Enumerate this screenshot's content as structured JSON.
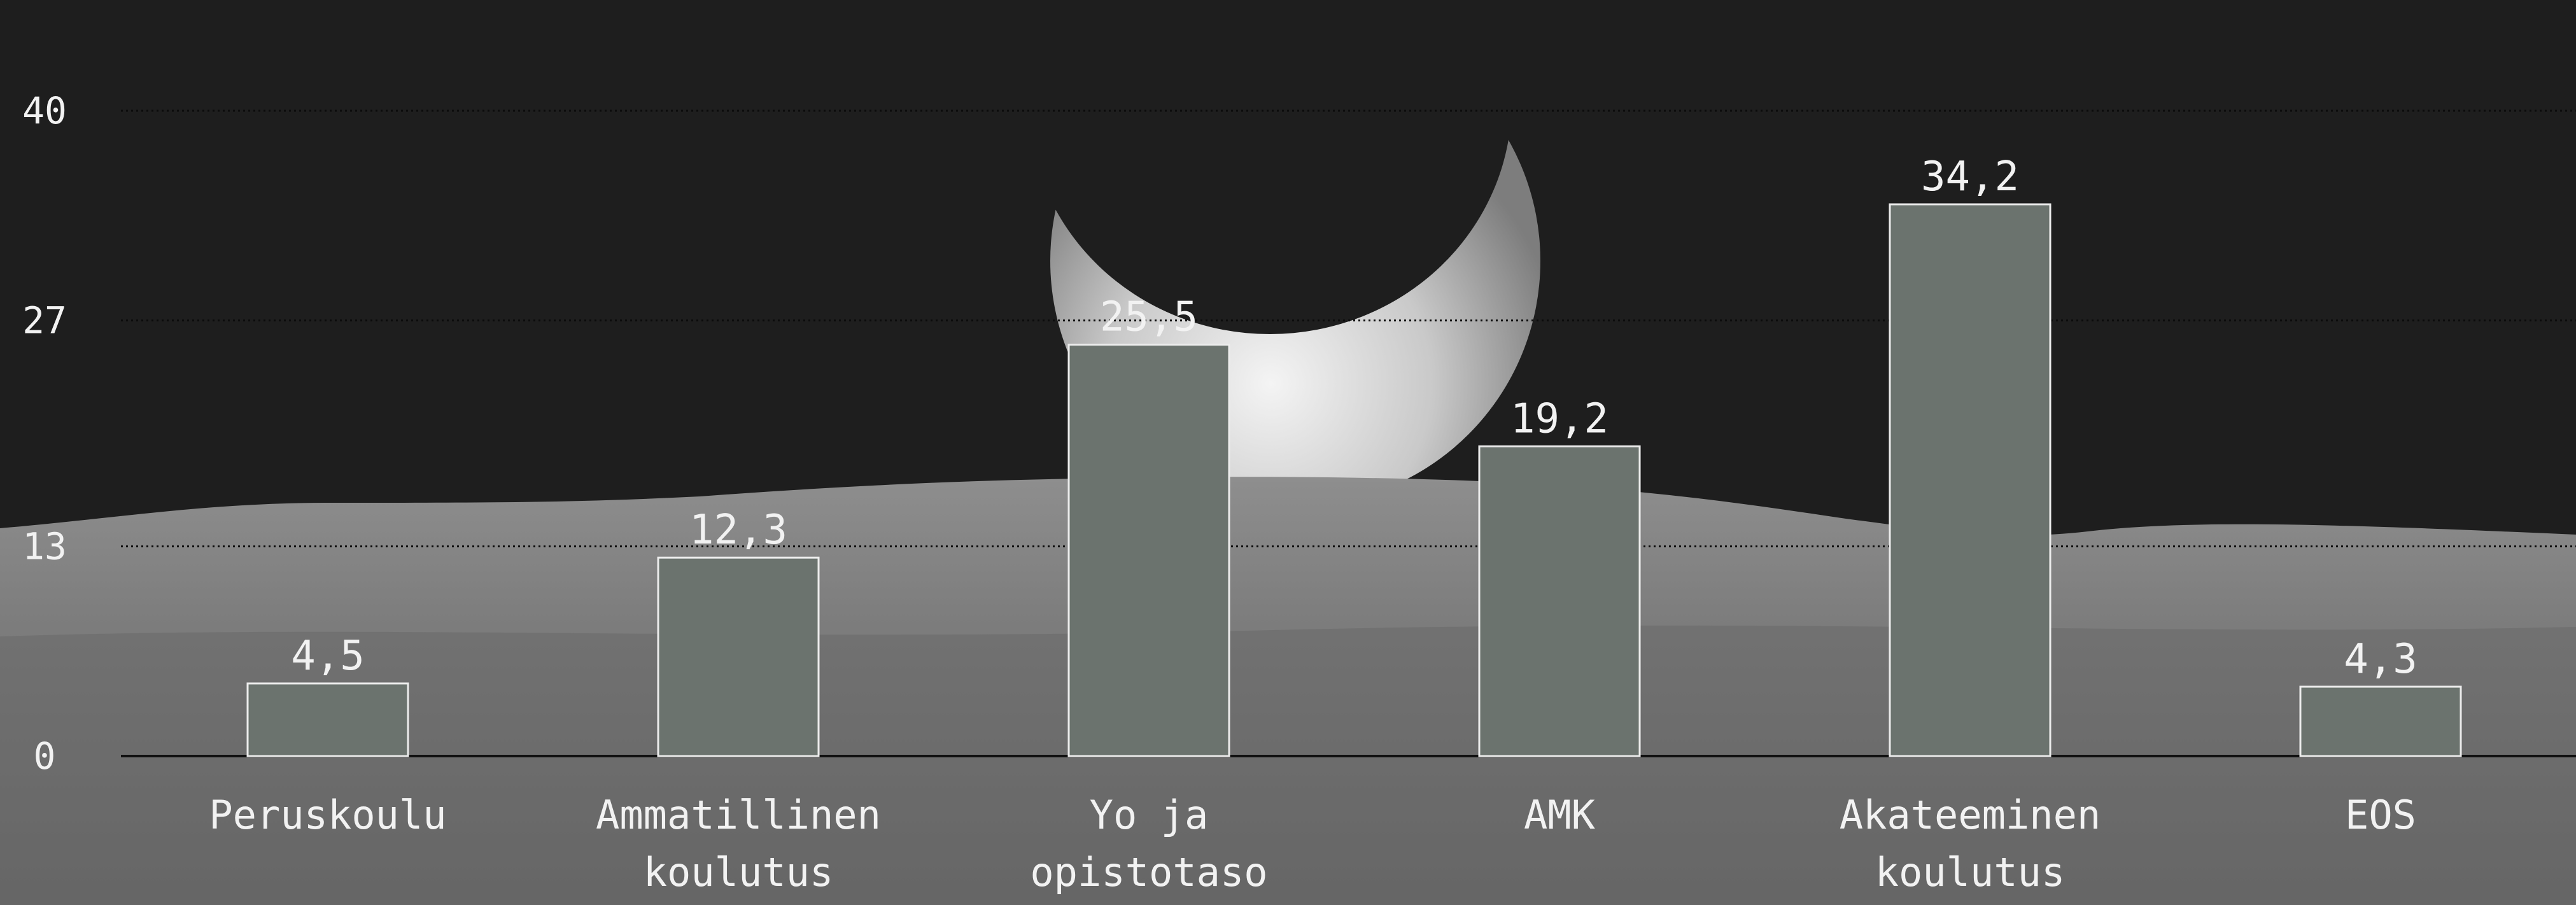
{
  "chart_data": {
    "type": "bar",
    "categories": [
      [
        "Peruskoulu"
      ],
      [
        "Ammatillinen",
        "koulutus"
      ],
      [
        "Yo ja",
        "opistotaso"
      ],
      [
        "AMK"
      ],
      [
        "Akateeminen",
        "koulutus"
      ],
      [
        "EOS"
      ]
    ],
    "values": [
      4.5,
      12.3,
      25.5,
      19.2,
      34.2,
      4.3
    ],
    "value_labels": [
      "4,5",
      "12,3",
      "25,5",
      "19,2",
      "34,2",
      "4,3"
    ],
    "y_ticks": [
      0,
      13,
      27,
      40
    ],
    "ylim": [
      0,
      40
    ],
    "grid": true,
    "title": "",
    "xlabel": "",
    "ylabel": "",
    "colors": {
      "bar_fill": "#6b736e",
      "bar_stroke": "#ececec",
      "text": "#f2f2f2",
      "sky": "#1e1e1e",
      "ground": "#8a8a8a"
    }
  }
}
